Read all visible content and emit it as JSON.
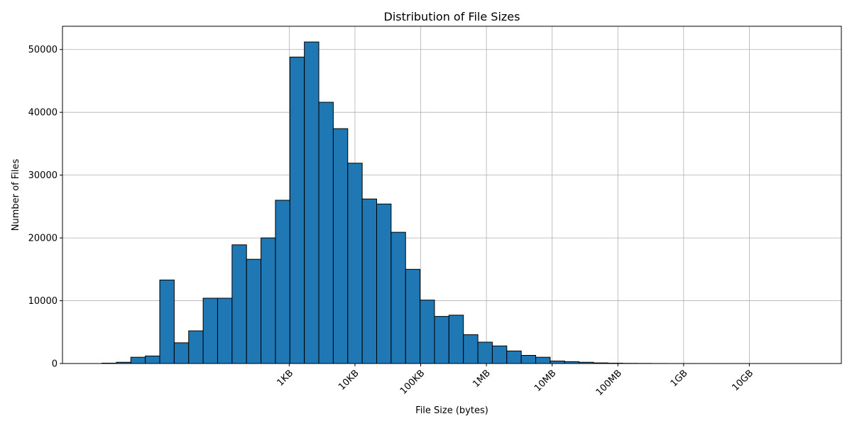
{
  "chart_data": {
    "type": "bar",
    "subtype": "histogram",
    "title": "Distribution of File Sizes",
    "xlabel": "File Size (bytes)",
    "ylabel": "Number of Files",
    "x_scale": "log",
    "bin_start_log10_bytes": 0.15,
    "bin_width_log10_bytes": 0.22,
    "values": [
      60,
      200,
      1000,
      1200,
      13300,
      3300,
      5200,
      10400,
      10400,
      18900,
      16600,
      20000,
      26000,
      48800,
      51200,
      41600,
      37400,
      31900,
      26200,
      25400,
      20900,
      15000,
      10100,
      7500,
      7700,
      4600,
      3400,
      2800,
      2000,
      1300,
      1000,
      400,
      300,
      200,
      100,
      60,
      30,
      20,
      10,
      5,
      5,
      3,
      3,
      2,
      2,
      1,
      1,
      1,
      1
    ],
    "x_ticks": [
      {
        "value_bytes": 1000,
        "label": "1KB"
      },
      {
        "value_bytes": 10000,
        "label": "10KB"
      },
      {
        "value_bytes": 100000,
        "label": "100KB"
      },
      {
        "value_bytes": 1000000,
        "label": "1MB"
      },
      {
        "value_bytes": 10000000,
        "label": "10MB"
      },
      {
        "value_bytes": 100000000,
        "label": "100MB"
      },
      {
        "value_bytes": 1000000000,
        "label": "1GB"
      },
      {
        "value_bytes": 10000000000,
        "label": "10GB"
      }
    ],
    "y_ticks": [
      {
        "value": 0,
        "label": "0"
      },
      {
        "value": 10000,
        "label": "10000"
      },
      {
        "value": 20000,
        "label": "20000"
      },
      {
        "value": 30000,
        "label": "30000"
      },
      {
        "value": 40000,
        "label": "40000"
      },
      {
        "value": 50000,
        "label": "50000"
      }
    ],
    "xlim_log10_bytes": [
      -0.45,
      11.4
    ],
    "ylim": [
      0,
      53700
    ],
    "grid": true,
    "colors": {
      "bar_fill": "#1f77b4",
      "bar_edge": "#000000",
      "grid": "#b0b0b0"
    }
  }
}
